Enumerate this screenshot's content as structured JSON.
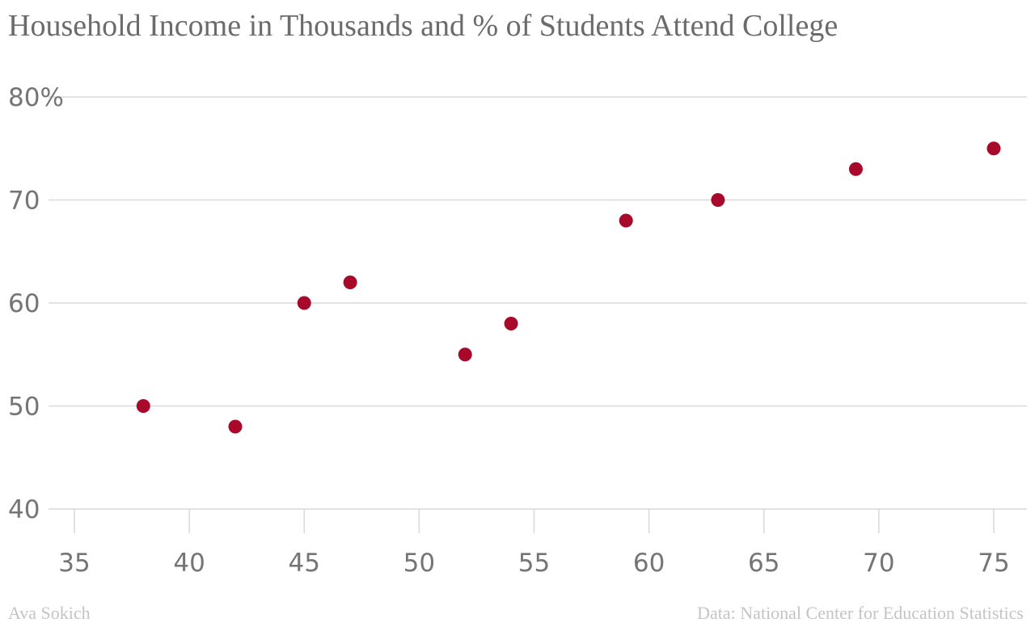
{
  "colors": {
    "point": "#a8082a",
    "grid": "#d9d9d9",
    "text": "#6b6b6b",
    "footer": "#c4c4c4"
  },
  "footer": {
    "author": "Ava Sokich",
    "source": "Data: National Center for Education Statistics"
  },
  "chart_data": {
    "type": "scatter",
    "title": "Household Income in Thousands and % of Students Attend College",
    "xlabel": "",
    "ylabel": "",
    "xlim": [
      35,
      75
    ],
    "ylim": [
      40,
      80
    ],
    "x_ticks": [
      35,
      40,
      45,
      50,
      55,
      60,
      65,
      70,
      75
    ],
    "y_ticks": [
      40,
      50,
      60,
      70,
      80
    ],
    "y_tick_labels": [
      "40",
      "50",
      "60",
      "70",
      "80%"
    ],
    "grid": "horizontal",
    "points": [
      {
        "x": 38,
        "y": 50
      },
      {
        "x": 42,
        "y": 48
      },
      {
        "x": 45,
        "y": 60
      },
      {
        "x": 47,
        "y": 62
      },
      {
        "x": 52,
        "y": 55
      },
      {
        "x": 54,
        "y": 58
      },
      {
        "x": 59,
        "y": 68
      },
      {
        "x": 63,
        "y": 70
      },
      {
        "x": 69,
        "y": 73
      },
      {
        "x": 75,
        "y": 75
      }
    ]
  }
}
